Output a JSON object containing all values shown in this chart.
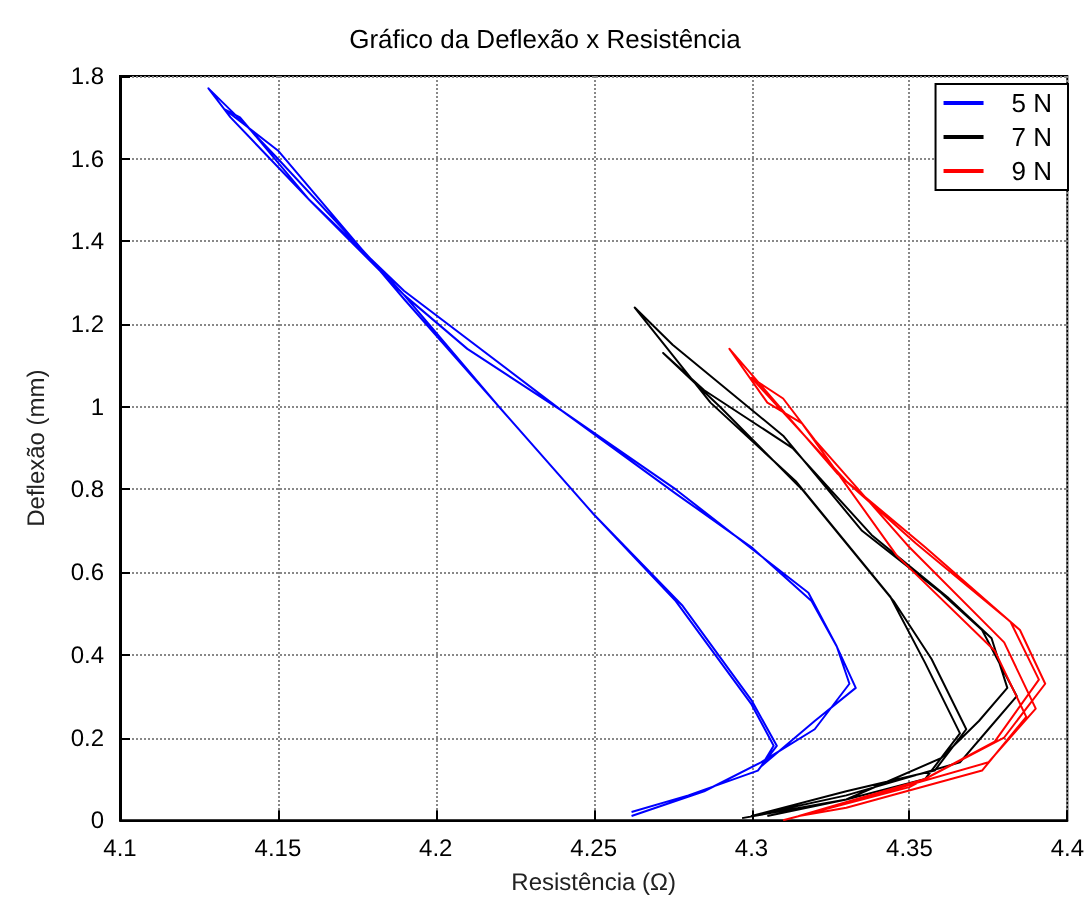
{
  "chart_data": {
    "type": "line",
    "title": "Gráfico da Deflexão x Resistência",
    "xlabel": "Resistência (Ω)",
    "ylabel": "Deflexão (mm)",
    "xlim": [
      4.1,
      4.4
    ],
    "xticks": [
      4.1,
      4.15,
      4.2,
      4.25,
      4.3,
      4.35,
      4.4
    ],
    "ylim": [
      0,
      1.8
    ],
    "yticks": [
      0,
      0.2,
      0.4,
      0.6,
      0.8,
      1,
      1.2,
      1.4,
      1.6,
      1.8
    ],
    "grid": true,
    "legend": "top right",
    "marker": "none",
    "line_style": "solid",
    "series": [
      {
        "name": "5 N",
        "color": "#0000ff",
        "x": [
          4.262,
          4.285,
          4.303,
          4.32,
          4.331,
          4.327,
          4.319,
          4.3,
          4.276,
          4.24,
          4.21,
          4.19,
          4.16,
          4.135,
          4.128,
          4.14,
          4.15,
          4.19,
          4.22,
          4.25,
          4.276,
          4.3,
          4.307,
          4.303,
          4.32,
          4.333,
          4.327,
          4.318,
          4.276,
          4.24,
          4.19,
          4.16,
          4.138,
          4.133,
          4.15,
          4.19,
          4.25,
          4.278,
          4.3,
          4.308,
          4.302,
          4.28,
          4.262
        ],
        "values": [
          0.01,
          0.07,
          0.14,
          0.22,
          0.33,
          0.42,
          0.53,
          0.66,
          0.79,
          0.99,
          1.14,
          1.27,
          1.5,
          1.7,
          1.77,
          1.68,
          1.6,
          1.27,
          1.0,
          0.74,
          0.53,
          0.28,
          0.18,
          0.13,
          0.24,
          0.32,
          0.42,
          0.55,
          0.8,
          0.99,
          1.28,
          1.5,
          1.7,
          1.72,
          1.62,
          1.26,
          0.74,
          0.52,
          0.29,
          0.18,
          0.12,
          0.06,
          0.02
        ]
      },
      {
        "name": "7 N",
        "color": "#000000",
        "x": [
          4.297,
          4.33,
          4.355,
          4.366,
          4.355,
          4.344,
          4.314,
          4.287,
          4.263,
          4.275,
          4.31,
          4.335,
          4.36,
          4.373,
          4.384,
          4.375,
          4.366,
          4.33,
          4.3,
          4.33,
          4.358,
          4.368,
          4.357,
          4.345,
          4.316,
          4.29,
          4.272,
          4.285,
          4.313,
          4.338,
          4.362,
          4.376,
          4.381,
          4.372,
          4.36,
          4.33,
          4.305
        ],
        "values": [
          0.005,
          0.05,
          0.1,
          0.21,
          0.38,
          0.54,
          0.82,
          1.01,
          1.24,
          1.15,
          0.93,
          0.7,
          0.55,
          0.46,
          0.3,
          0.22,
          0.14,
          0.06,
          0.01,
          0.07,
          0.12,
          0.22,
          0.39,
          0.53,
          0.8,
          1.0,
          1.13,
          1.04,
          0.9,
          0.69,
          0.54,
          0.44,
          0.32,
          0.24,
          0.15,
          0.05,
          0.01
        ]
      },
      {
        "name": "9 N",
        "color": "#ff0000",
        "x": [
          4.31,
          4.35,
          4.377,
          4.391,
          4.382,
          4.352,
          4.327,
          4.293,
          4.305,
          4.316,
          4.346,
          4.377,
          4.387,
          4.373,
          4.33,
          4.315,
          4.355,
          4.38,
          4.393,
          4.385,
          4.355,
          4.33,
          4.3,
          4.31,
          4.32,
          4.35,
          4.38,
          4.39,
          4.375,
          4.32
        ],
        "values": [
          0.0,
          0.08,
          0.19,
          0.34,
          0.48,
          0.67,
          0.84,
          1.14,
          1.01,
          0.96,
          0.64,
          0.41,
          0.25,
          0.12,
          0.03,
          0.01,
          0.1,
          0.2,
          0.33,
          0.46,
          0.66,
          0.82,
          1.07,
          1.02,
          0.92,
          0.66,
          0.43,
          0.27,
          0.14,
          0.02
        ]
      }
    ]
  }
}
